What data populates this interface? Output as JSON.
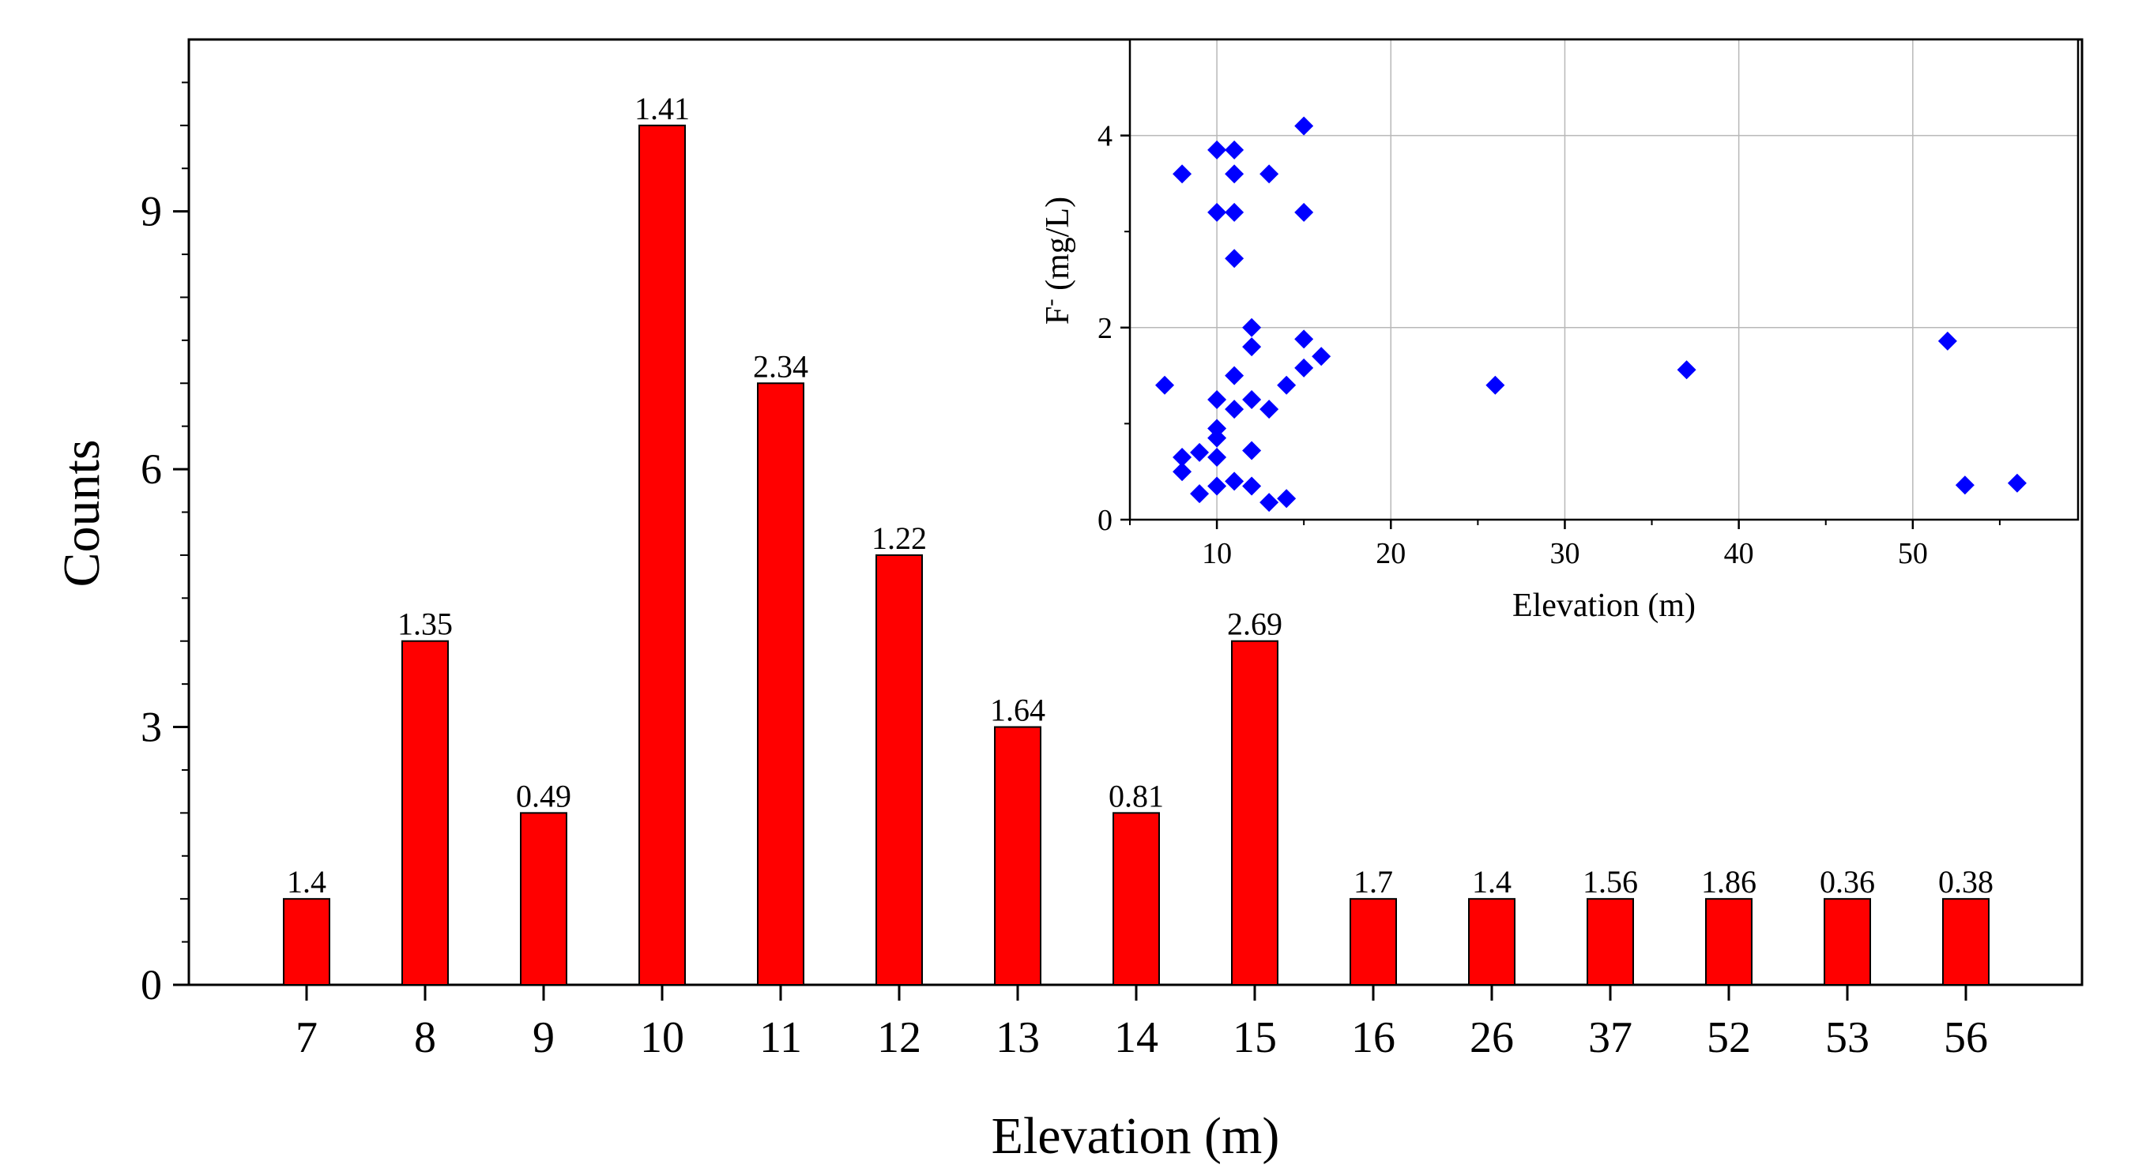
{
  "chart_data": [
    {
      "type": "bar",
      "title": "",
      "xlabel": "Elevation (m)",
      "ylabel": "Counts",
      "categories": [
        "7",
        "8",
        "9",
        "10",
        "11",
        "12",
        "13",
        "14",
        "15",
        "16",
        "26",
        "37",
        "52",
        "53",
        "56"
      ],
      "values": [
        1,
        4,
        2,
        10,
        7,
        5,
        3,
        2,
        4,
        1,
        1,
        1,
        1,
        1,
        1
      ],
      "bar_labels": [
        "1.4",
        "1.35",
        "0.49",
        "1.41",
        "2.34",
        "1.22",
        "1.64",
        "0.81",
        "2.69",
        "1.7",
        "1.4",
        "1.56",
        "1.86",
        "0.36",
        "0.38"
      ],
      "yticks": [
        0,
        3,
        6,
        9
      ],
      "ylim": [
        0,
        11
      ],
      "bar_color": "#ff0000",
      "grid": false
    },
    {
      "type": "scatter",
      "title": "",
      "xlabel": "Elevation (m)",
      "ylabel_prefix": "F",
      "ylabel_superscript": "-",
      "ylabel_suffix": " (mg/L)",
      "xticks": [
        10,
        20,
        30,
        40,
        50
      ],
      "yticks": [
        0,
        2,
        4
      ],
      "xlim": [
        5,
        59.5
      ],
      "ylim": [
        0,
        5
      ],
      "grid": true,
      "marker": "diamond",
      "marker_color": "#0000ff",
      "points": [
        [
          7,
          1.4
        ],
        [
          8,
          3.6
        ],
        [
          8,
          0.65
        ],
        [
          8,
          0.5
        ],
        [
          9,
          0.7
        ],
        [
          9,
          0.27
        ],
        [
          10,
          3.85
        ],
        [
          10,
          3.2
        ],
        [
          10,
          1.25
        ],
        [
          10,
          0.95
        ],
        [
          10,
          0.85
        ],
        [
          10,
          0.65
        ],
        [
          10,
          0.35
        ],
        [
          11,
          3.85
        ],
        [
          11,
          3.6
        ],
        [
          11,
          3.2
        ],
        [
          11,
          2.72
        ],
        [
          11,
          1.5
        ],
        [
          11,
          1.15
        ],
        [
          11,
          0.4
        ],
        [
          12,
          2.0
        ],
        [
          12,
          1.8
        ],
        [
          12,
          1.25
        ],
        [
          12,
          0.72
        ],
        [
          12,
          0.35
        ],
        [
          13,
          3.6
        ],
        [
          13,
          1.15
        ],
        [
          13,
          0.18
        ],
        [
          14,
          1.4
        ],
        [
          14,
          0.22
        ],
        [
          15,
          4.1
        ],
        [
          15,
          3.2
        ],
        [
          15,
          1.88
        ],
        [
          15,
          1.58
        ],
        [
          16,
          1.7
        ],
        [
          26,
          1.4
        ],
        [
          37,
          1.56
        ],
        [
          52,
          1.86
        ],
        [
          53,
          0.36
        ],
        [
          56,
          0.38
        ]
      ]
    }
  ]
}
